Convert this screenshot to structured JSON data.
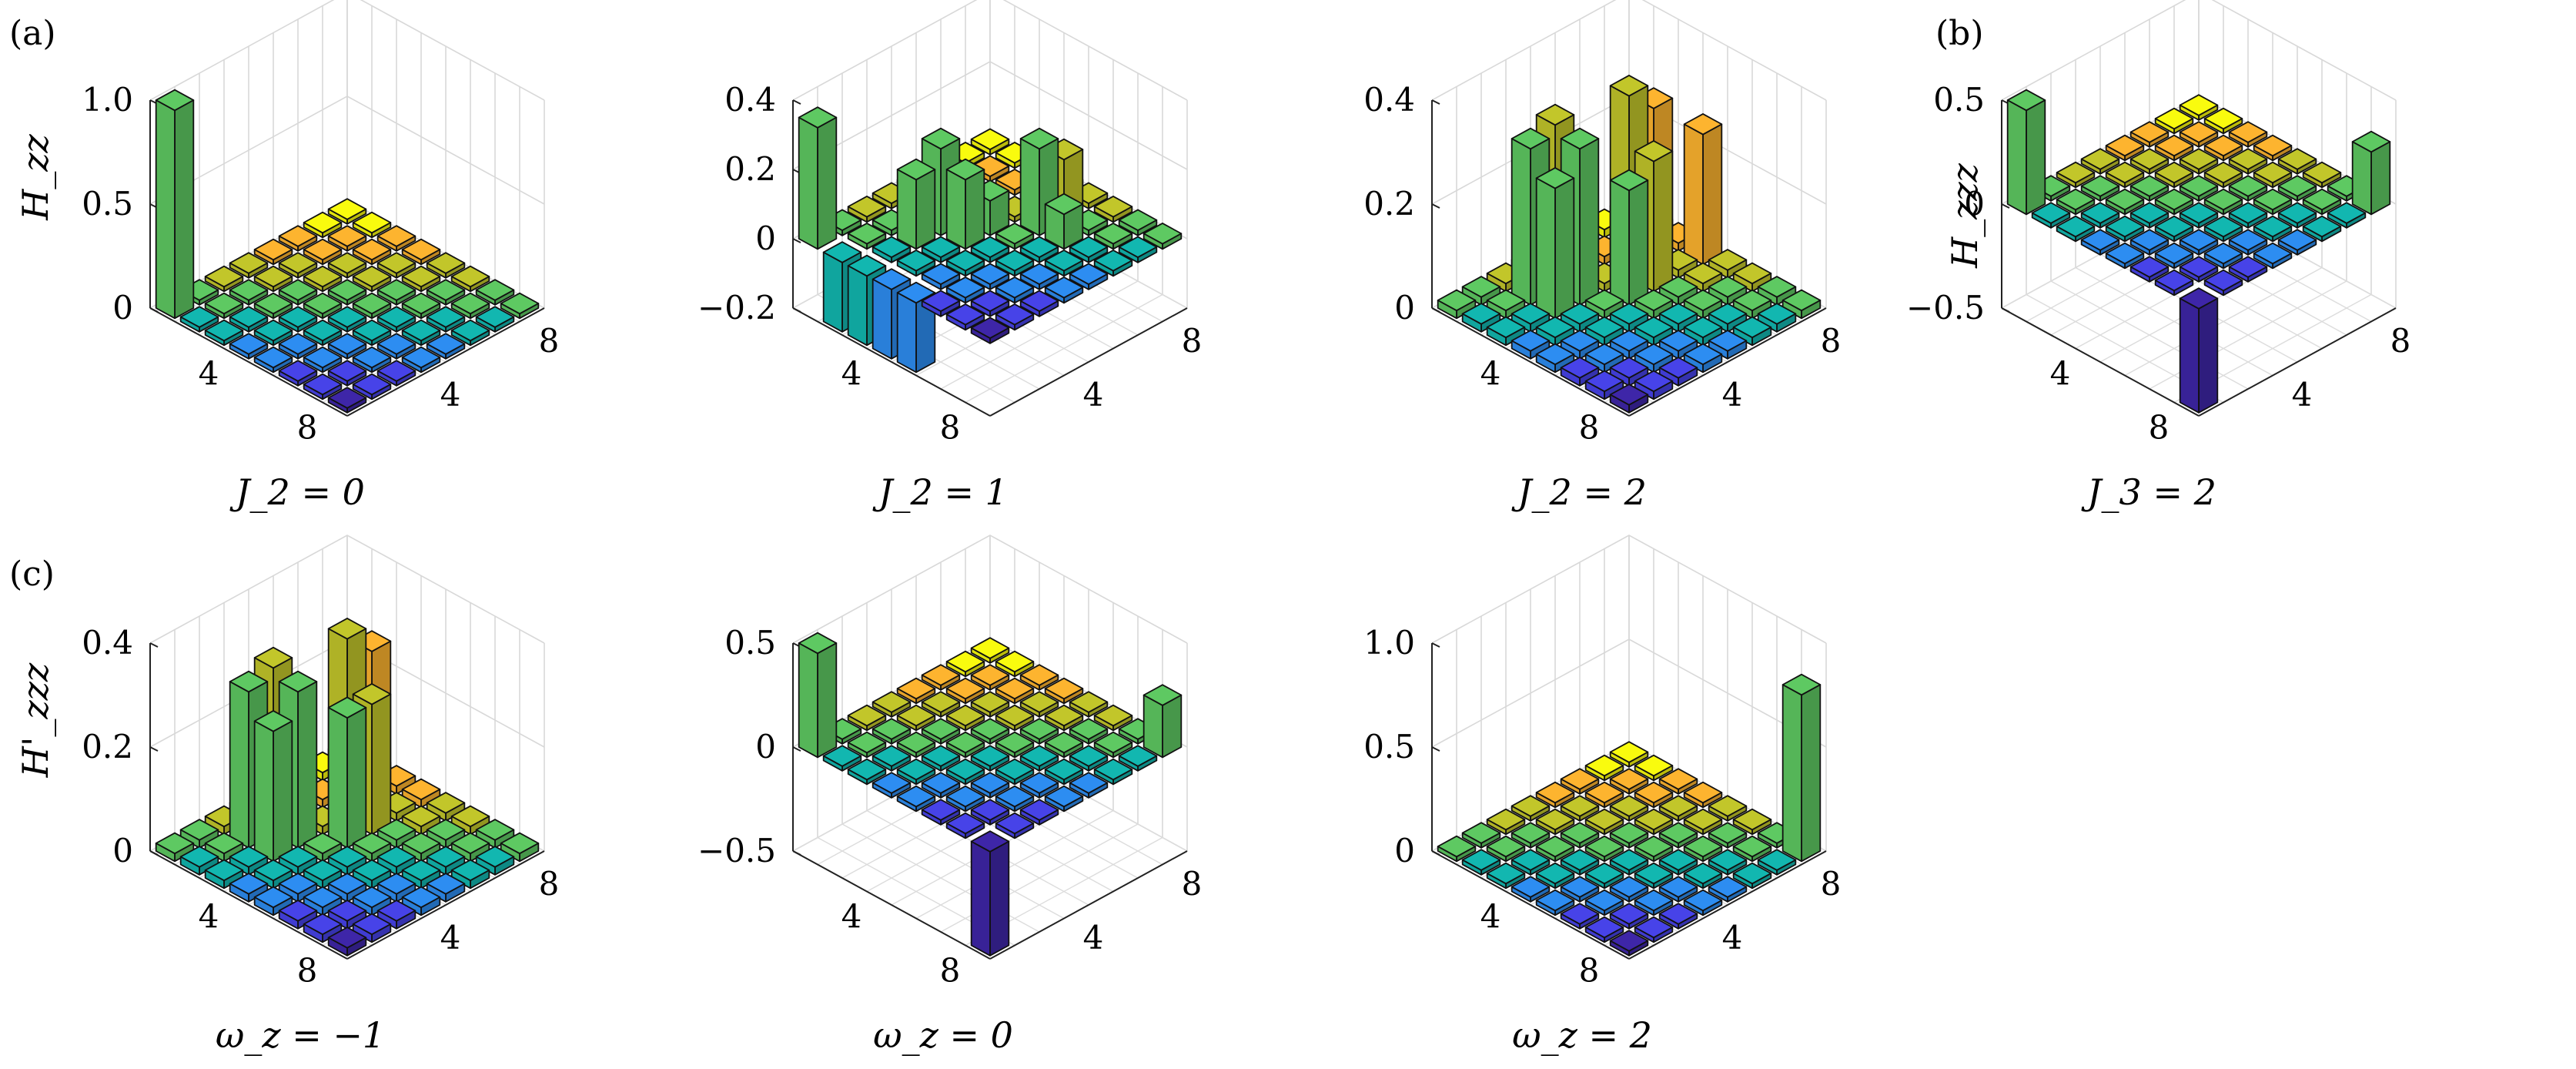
{
  "panel_labels": {
    "a": "(a)",
    "b": "(b)",
    "c": "(c)"
  },
  "ylabels": {
    "a": "H_zz",
    "b": "H_zzz",
    "c": "H'_zzz"
  },
  "colormap": [
    "#3e26a8",
    "#4743e8",
    "#2d8df1",
    "#12b7b0",
    "#5ec962",
    "#c2c62a",
    "#fdb42f",
    "#f9fb0e"
  ],
  "chart_data": [
    {
      "type": "bar3d",
      "group": "a",
      "caption": "J_2 = 0",
      "zlim": [
        0,
        1.0
      ],
      "zticks": [
        0,
        0.5,
        1.0
      ],
      "zticklabels": [
        "0",
        "0.5",
        "1.0"
      ],
      "xticks": [
        "4",
        "8"
      ],
      "yticks": [
        "4",
        "8"
      ],
      "bars": [
        {
          "i": 1,
          "j": 1,
          "v": 1.0
        }
      ]
    },
    {
      "type": "bar3d",
      "group": "a",
      "caption": "J_2 = 1",
      "zlim": [
        -0.2,
        0.4
      ],
      "zticks": [
        -0.2,
        0,
        0.2,
        0.4
      ],
      "zticklabels": [
        "−0.2",
        "0",
        "0.2",
        "0.4"
      ],
      "xticks": [
        "4",
        "8"
      ],
      "yticks": [
        "4",
        "8"
      ],
      "bars": [
        {
          "i": 1,
          "j": 1,
          "v": 0.35
        },
        {
          "i": 3,
          "j": 3,
          "v": 0.2
        },
        {
          "i": 3,
          "j": 4,
          "v": 0.25
        },
        {
          "i": 4,
          "j": 4,
          "v": 0.2
        },
        {
          "i": 4,
          "j": 5,
          "v": 0.1
        },
        {
          "i": 5,
          "j": 6,
          "v": 0.25
        },
        {
          "i": 5,
          "j": 7,
          "v": 0.18
        },
        {
          "i": 6,
          "j": 6,
          "v": 0.1
        },
        {
          "i": 2,
          "j": 1,
          "v": -0.2
        },
        {
          "i": 3,
          "j": 1,
          "v": -0.2
        },
        {
          "i": 4,
          "j": 1,
          "v": -0.2
        },
        {
          "i": 5,
          "j": 1,
          "v": -0.2
        }
      ]
    },
    {
      "type": "bar3d",
      "group": "a",
      "caption": "J_2 = 2",
      "zlim": [
        0,
        0.4
      ],
      "zticks": [
        0,
        0.2,
        0.4
      ],
      "zticklabels": [
        "0",
        "0.2",
        "0.4"
      ],
      "xticks": [
        "4",
        "8"
      ],
      "yticks": [
        "4",
        "8"
      ],
      "bars": [
        {
          "i": 2,
          "j": 3,
          "v": 0.3
        },
        {
          "i": 2,
          "j": 4,
          "v": 0.32
        },
        {
          "i": 3,
          "j": 3,
          "v": 0.25
        },
        {
          "i": 3,
          "j": 4,
          "v": 0.3
        },
        {
          "i": 4,
          "j": 5,
          "v": 0.22
        },
        {
          "i": 4,
          "j": 6,
          "v": 0.25
        },
        {
          "i": 3,
          "j": 6,
          "v": 0.35
        },
        {
          "i": 3,
          "j": 7,
          "v": 0.3
        },
        {
          "i": 4,
          "j": 8,
          "v": 0.25
        }
      ]
    },
    {
      "type": "bar3d",
      "group": "b",
      "caption": "J_3 = 2",
      "zlim": [
        -0.5,
        0.5
      ],
      "zticks": [
        -0.5,
        0,
        0.5
      ],
      "zticklabels": [
        "−0.5",
        "0",
        "0.5"
      ],
      "xticks": [
        "4",
        "8"
      ],
      "yticks": [
        "4",
        "8"
      ],
      "bars": [
        {
          "i": 1,
          "j": 1,
          "v": 0.5
        },
        {
          "i": 8,
          "j": 8,
          "v": 0.3
        },
        {
          "i": 8,
          "j": 1,
          "v": -0.5
        }
      ]
    },
    {
      "type": "bar3d",
      "group": "c",
      "caption": "ω_z = −1",
      "zlim": [
        0,
        0.4
      ],
      "zticks": [
        0,
        0.2,
        0.4
      ],
      "zticklabels": [
        "0",
        "0.2",
        "0.4"
      ],
      "xticks": [
        "4",
        "8"
      ],
      "yticks": [
        "4",
        "8"
      ],
      "bars": [
        {
          "i": 2,
          "j": 3,
          "v": 0.3
        },
        {
          "i": 2,
          "j": 4,
          "v": 0.32
        },
        {
          "i": 3,
          "j": 3,
          "v": 0.25
        },
        {
          "i": 3,
          "j": 4,
          "v": 0.3
        },
        {
          "i": 3,
          "j": 6,
          "v": 0.35
        },
        {
          "i": 3,
          "j": 7,
          "v": 0.3
        },
        {
          "i": 4,
          "j": 5,
          "v": 0.25
        },
        {
          "i": 4,
          "j": 6,
          "v": 0.25
        }
      ]
    },
    {
      "type": "bar3d",
      "group": "c",
      "caption": "ω_z = 0",
      "zlim": [
        -0.5,
        0.5
      ],
      "zticks": [
        -0.5,
        0,
        0.5
      ],
      "zticklabels": [
        "−0.5",
        "0",
        "0.5"
      ],
      "xticks": [
        "4",
        "8"
      ],
      "yticks": [
        "4",
        "8"
      ],
      "bars": [
        {
          "i": 1,
          "j": 1,
          "v": 0.5
        },
        {
          "i": 8,
          "j": 8,
          "v": 0.25
        },
        {
          "i": 8,
          "j": 1,
          "v": -0.5
        }
      ]
    },
    {
      "type": "bar3d",
      "group": "c",
      "caption": "ω_z = 2",
      "zlim": [
        0,
        1.0
      ],
      "zticks": [
        0,
        0.5,
        1.0
      ],
      "zticklabels": [
        "0",
        "0.5",
        "1.0"
      ],
      "xticks": [
        "4",
        "8"
      ],
      "yticks": [
        "4",
        "8"
      ],
      "bars": [
        {
          "i": 8,
          "j": 8,
          "v": 0.8
        }
      ]
    }
  ]
}
